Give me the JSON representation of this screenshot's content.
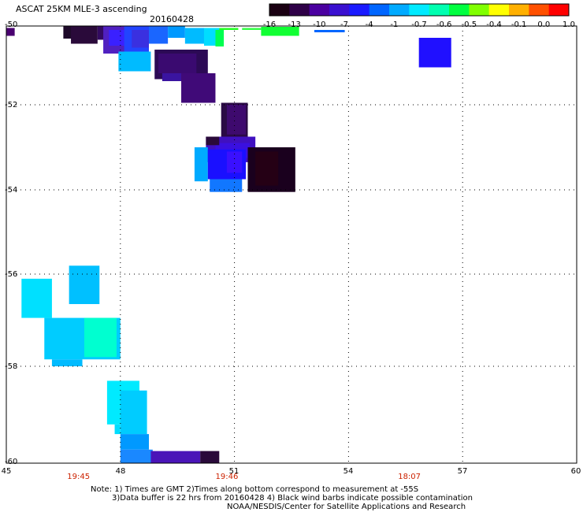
{
  "header": {
    "title": "ASCAT 25KM MLE-3 ascending",
    "date": "20160428"
  },
  "colorbar": {
    "labels": [
      "-16",
      "-13",
      "-10",
      "-7",
      "-4",
      "-1",
      "-0.7",
      "-0.6",
      "-0.5",
      "-0.4",
      "-0.1",
      "0.0",
      "1.0"
    ],
    "colors": [
      "#1a0012",
      "#2e0047",
      "#4a00a0",
      "#3a10d0",
      "#1a1aff",
      "#0066ff",
      "#00aaff",
      "#00eaff",
      "#00ffb0",
      "#00ff40",
      "#80ff00",
      "#ffff00",
      "#ffb000",
      "#ff5000",
      "#ff0000"
    ]
  },
  "axes": {
    "x_ticks": [
      "45",
      "48",
      "51",
      "54",
      "57",
      "60"
    ],
    "y_ticks": [
      "-50",
      "-52",
      "-54",
      "-56",
      "-58",
      "-60"
    ],
    "x_range": [
      45,
      60
    ],
    "y_range": [
      -60,
      -50
    ],
    "times": [
      {
        "label": "19:45",
        "lon": 46.9
      },
      {
        "label": "19:46",
        "lon": 50.8
      },
      {
        "label": "18:07",
        "lon": 55.6
      }
    ]
  },
  "notes": {
    "line1": "Note: 1) Times are GMT 2)Times along bottom correspond to measurement at -55S",
    "line2": "3)Data buffer is 22 hrs from 20160428 4) Black wind barbs indicate possible contamination",
    "line3": "NOAA/NESDIS/Center for Satellite Applications and Research"
  },
  "map_data": {
    "cells": [
      {
        "lon0": 45.0,
        "lon1": 45.22,
        "lat0": -50.05,
        "lat1": -50.25,
        "color": "#4a0070"
      },
      {
        "lon0": 46.5,
        "lon1": 47.0,
        "lat0": -50.0,
        "lat1": -50.32,
        "color": "#1e0a2a"
      },
      {
        "lon0": 46.7,
        "lon1": 47.4,
        "lat0": -50.0,
        "lat1": -50.45,
        "color": "#2a0a3a"
      },
      {
        "lon0": 47.4,
        "lon1": 47.75,
        "lat0": -50.0,
        "lat1": -50.35,
        "color": "#330a60"
      },
      {
        "lon0": 47.55,
        "lon1": 48.5,
        "lat0": -50.0,
        "lat1": -50.7,
        "color": "#5020c0"
      },
      {
        "lon0": 47.7,
        "lon1": 48.2,
        "lat0": -50.1,
        "lat1": -50.5,
        "color": "#3a20ff"
      },
      {
        "lon0": 48.1,
        "lon1": 48.75,
        "lat0": -50.0,
        "lat1": -50.7,
        "color": "#2244ff"
      },
      {
        "lon0": 48.3,
        "lon1": 48.75,
        "lat0": -50.1,
        "lat1": -50.55,
        "color": "#3a30e0"
      },
      {
        "lon0": 48.75,
        "lon1": 49.25,
        "lat0": -50.0,
        "lat1": -50.45,
        "color": "#1a66ff"
      },
      {
        "lon0": 49.25,
        "lon1": 49.7,
        "lat0": -50.0,
        "lat1": -50.3,
        "color": "#0099ff"
      },
      {
        "lon0": 49.7,
        "lon1": 50.2,
        "lat0": -50.05,
        "lat1": -50.45,
        "color": "#00bbff"
      },
      {
        "lon0": 50.2,
        "lon1": 50.7,
        "lat0": -50.05,
        "lat1": -50.5,
        "color": "#00ddff"
      },
      {
        "lon0": 50.5,
        "lon1": 50.72,
        "lat0": -50.1,
        "lat1": -50.52,
        "color": "#00ff50"
      },
      {
        "lon0": 50.6,
        "lon1": 51.1,
        "lat0": -50.05,
        "lat1": -50.1,
        "color": "#22ff22"
      },
      {
        "lon0": 51.2,
        "lon1": 51.7,
        "lat0": -50.05,
        "lat1": -50.1,
        "color": "#33ff44"
      },
      {
        "lon0": 51.7,
        "lon1": 52.7,
        "lat0": -50.02,
        "lat1": -50.25,
        "color": "#11ff33"
      },
      {
        "lon0": 53.1,
        "lon1": 53.9,
        "lat0": -50.1,
        "lat1": -50.16,
        "color": "#0066ff"
      },
      {
        "lon0": 55.85,
        "lon1": 56.7,
        "lat0": -50.3,
        "lat1": -51.05,
        "color": "#2010ff"
      },
      {
        "lon0": 47.95,
        "lon1": 48.8,
        "lat0": -50.65,
        "lat1": -51.15,
        "color": "#00bbff"
      },
      {
        "lon0": 48.9,
        "lon1": 50.3,
        "lat0": -50.6,
        "lat1": -51.35,
        "color": "#2c0a55"
      },
      {
        "lon0": 49.0,
        "lon1": 50.0,
        "lat0": -50.7,
        "lat1": -51.2,
        "color": "#3a0a70"
      },
      {
        "lon0": 49.1,
        "lon1": 50.2,
        "lat0": -51.2,
        "lat1": -51.4,
        "color": "#3a14a0"
      },
      {
        "lon0": 49.6,
        "lon1": 50.5,
        "lat0": -51.2,
        "lat1": -51.95,
        "color": "#400a78"
      },
      {
        "lon0": 50.65,
        "lon1": 51.35,
        "lat0": -51.95,
        "lat1": -52.75,
        "color": "#2a0a45"
      },
      {
        "lon0": 50.8,
        "lon1": 51.3,
        "lat0": -52.0,
        "lat1": -52.7,
        "color": "#3e0a6e"
      },
      {
        "lon0": 50.25,
        "lon1": 51.55,
        "lat0": -52.75,
        "lat1": -53.35,
        "color": "#4010c0"
      },
      {
        "lon0": 50.5,
        "lon1": 51.4,
        "lat0": -52.9,
        "lat1": -53.25,
        "color": "#3a10e0"
      },
      {
        "lon0": 50.25,
        "lon1": 50.6,
        "lat0": -52.75,
        "lat1": -52.95,
        "color": "#2a0a3a"
      },
      {
        "lon0": 49.95,
        "lon1": 50.3,
        "lat0": -53.0,
        "lat1": -53.8,
        "color": "#00aaff"
      },
      {
        "lon0": 50.3,
        "lon1": 51.3,
        "lat0": -53.05,
        "lat1": -53.75,
        "color": "#1a10ff"
      },
      {
        "lon0": 50.8,
        "lon1": 51.2,
        "lat0": -53.1,
        "lat1": -53.6,
        "color": "#3a10ff"
      },
      {
        "lon0": 50.35,
        "lon1": 51.2,
        "lat0": -53.75,
        "lat1": -54.05,
        "color": "#1177ff"
      },
      {
        "lon0": 51.35,
        "lon1": 52.6,
        "lat0": -53.0,
        "lat1": -54.05,
        "color": "#1a001e"
      },
      {
        "lon0": 51.55,
        "lon1": 52.15,
        "lat0": -53.1,
        "lat1": -53.9,
        "color": "#250015"
      },
      {
        "lon0": 46.65,
        "lon1": 47.45,
        "lat0": -55.8,
        "lat1": -56.65,
        "color": "#00c0ff"
      },
      {
        "lon0": 45.4,
        "lon1": 46.2,
        "lat0": -56.1,
        "lat1": -56.95,
        "color": "#00e0ff"
      },
      {
        "lon0": 46.0,
        "lon1": 48.0,
        "lat0": -56.95,
        "lat1": -57.85,
        "color": "#00ccff"
      },
      {
        "lon0": 46.2,
        "lon1": 47.0,
        "lat0": -57.85,
        "lat1": -58.0,
        "color": "#00bbff"
      },
      {
        "lon0": 47.05,
        "lon1": 47.9,
        "lat0": -56.95,
        "lat1": -57.8,
        "color": "#00ffd0"
      },
      {
        "lon0": 47.65,
        "lon1": 48.5,
        "lat0": -58.3,
        "lat1": -59.2,
        "color": "#00eaff"
      },
      {
        "lon0": 48.0,
        "lon1": 48.7,
        "lat0": -58.5,
        "lat1": -59.4,
        "color": "#00ccff"
      },
      {
        "lon0": 47.85,
        "lon1": 48.0,
        "lat0": -59.2,
        "lat1": -59.4,
        "color": "#00ddff"
      },
      {
        "lon0": 48.0,
        "lon1": 48.75,
        "lat0": -59.4,
        "lat1": -59.72,
        "color": "#0099ff"
      },
      {
        "lon0": 48.0,
        "lon1": 48.85,
        "lat0": -59.72,
        "lat1": -60.0,
        "color": "#1a88ff"
      },
      {
        "lon0": 48.8,
        "lon1": 50.1,
        "lat0": -59.75,
        "lat1": -60.05,
        "color": "#4a14b8"
      },
      {
        "lon0": 50.1,
        "lon1": 50.6,
        "lat0": -59.75,
        "lat1": -60.05,
        "color": "#2a0a3a"
      }
    ]
  }
}
